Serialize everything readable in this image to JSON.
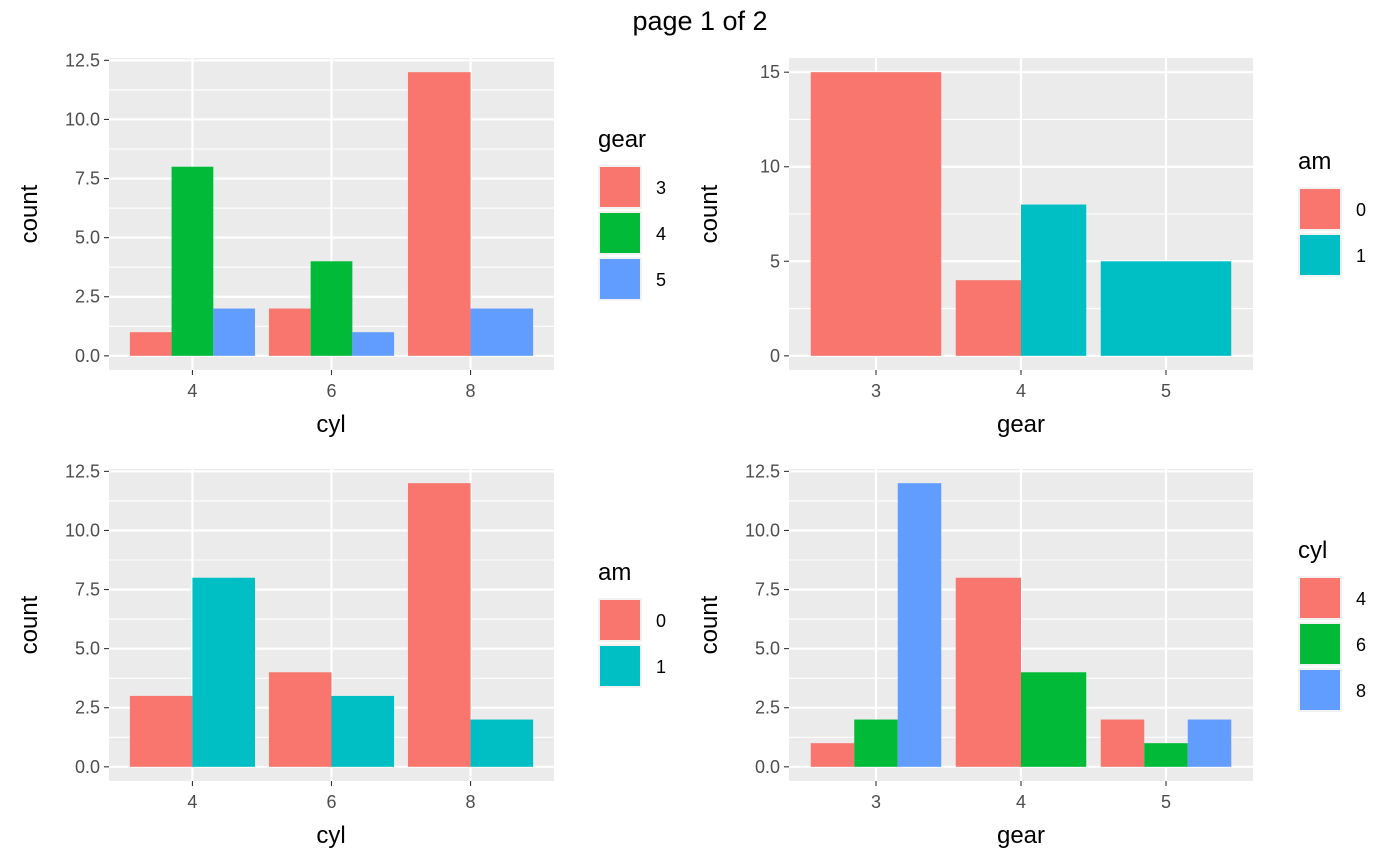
{
  "page_title": "page 1 of 2",
  "colors": {
    "panel_bg": "#ebebeb",
    "grid": "#ffffff",
    "tick": "#333333"
  },
  "chart_data": [
    {
      "type": "bar",
      "position": "dodge",
      "xlabel": "cyl",
      "ylabel": "count",
      "categories": [
        "4",
        "6",
        "8"
      ],
      "ylim": [
        -0.6,
        12.6
      ],
      "y_ticks": [
        0,
        2.5,
        5,
        7.5,
        10,
        12.5
      ],
      "y_tick_labels": [
        "0.0",
        "2.5",
        "5.0",
        "7.5",
        "10.0",
        "12.5"
      ],
      "legend": {
        "title": "gear",
        "placement": "right",
        "entries": [
          "3",
          "4",
          "5"
        ]
      },
      "series": [
        {
          "name": "3",
          "color": "#F8766D",
          "values": [
            1,
            2,
            12
          ]
        },
        {
          "name": "4",
          "color": "#00BA38",
          "values": [
            8,
            4,
            0
          ]
        },
        {
          "name": "5",
          "color": "#619CFF",
          "values": [
            2,
            1,
            2
          ]
        }
      ]
    },
    {
      "type": "bar",
      "position": "dodge",
      "xlabel": "gear",
      "ylabel": "count",
      "categories": [
        "3",
        "4",
        "5"
      ],
      "ylim": [
        -0.75,
        15.75
      ],
      "y_ticks": [
        0,
        5,
        10,
        15
      ],
      "y_tick_labels": [
        "0",
        "5",
        "10",
        "15"
      ],
      "legend": {
        "title": "am",
        "placement": "right",
        "entries": [
          "0",
          "1"
        ]
      },
      "series": [
        {
          "name": "0",
          "color": "#F8766D",
          "values": [
            15,
            4,
            0
          ]
        },
        {
          "name": "1",
          "color": "#00BFC4",
          "values": [
            0,
            8,
            5
          ]
        }
      ]
    },
    {
      "type": "bar",
      "position": "dodge",
      "xlabel": "cyl",
      "ylabel": "count",
      "categories": [
        "4",
        "6",
        "8"
      ],
      "ylim": [
        -0.6,
        12.6
      ],
      "y_ticks": [
        0,
        2.5,
        5,
        7.5,
        10,
        12.5
      ],
      "y_tick_labels": [
        "0.0",
        "2.5",
        "5.0",
        "7.5",
        "10.0",
        "12.5"
      ],
      "legend": {
        "title": "am",
        "placement": "right",
        "entries": [
          "0",
          "1"
        ]
      },
      "series": [
        {
          "name": "0",
          "color": "#F8766D",
          "values": [
            3,
            4,
            12
          ]
        },
        {
          "name": "1",
          "color": "#00BFC4",
          "values": [
            8,
            3,
            2
          ]
        }
      ]
    },
    {
      "type": "bar",
      "position": "dodge",
      "xlabel": "gear",
      "ylabel": "count",
      "categories": [
        "3",
        "4",
        "5"
      ],
      "ylim": [
        -0.6,
        12.6
      ],
      "y_ticks": [
        0,
        2.5,
        5,
        7.5,
        10,
        12.5
      ],
      "y_tick_labels": [
        "0.0",
        "2.5",
        "5.0",
        "7.5",
        "10.0",
        "12.5"
      ],
      "legend": {
        "title": "cyl",
        "placement": "right",
        "entries": [
          "4",
          "6",
          "8"
        ]
      },
      "series": [
        {
          "name": "4",
          "color": "#F8766D",
          "values": [
            1,
            8,
            2
          ]
        },
        {
          "name": "6",
          "color": "#00BA38",
          "values": [
            2,
            4,
            1
          ]
        },
        {
          "name": "8",
          "color": "#619CFF",
          "values": [
            12,
            0,
            2
          ]
        }
      ]
    }
  ]
}
